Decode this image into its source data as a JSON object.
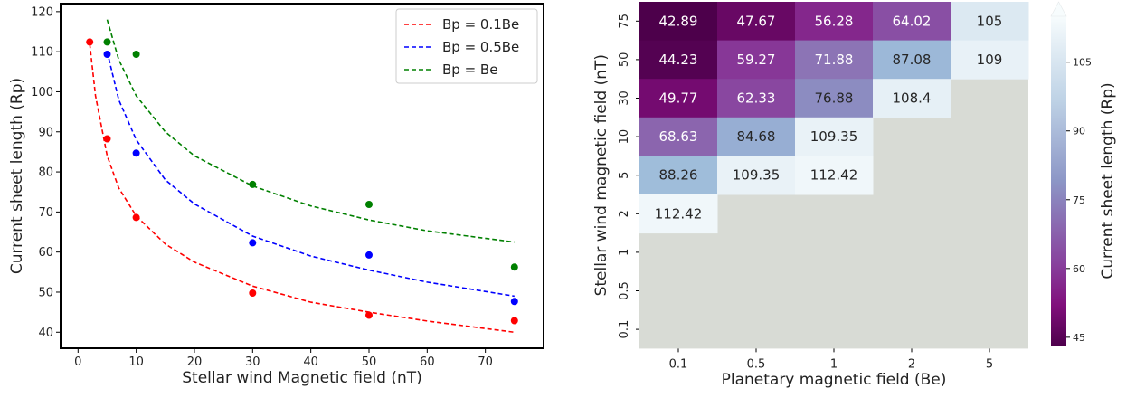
{
  "chart_data": [
    {
      "type": "scatter",
      "xlabel": "Stellar wind Magnetic field (nT)",
      "ylabel": "Current sheet length (Rp)",
      "xlim": [
        -3,
        80
      ],
      "ylim": [
        36,
        122
      ],
      "xticks": [
        0,
        10,
        20,
        30,
        40,
        50,
        60,
        70
      ],
      "yticks": [
        40,
        50,
        60,
        70,
        80,
        90,
        100,
        110,
        120
      ],
      "legend_position": "top-right",
      "series": [
        {
          "name": "Bp = 0.1Be",
          "color": "#ff0000",
          "points": [
            [
              2,
              112.42
            ],
            [
              5,
              88.26
            ],
            [
              10,
              68.63
            ],
            [
              30,
              49.77
            ],
            [
              50,
              44.23
            ],
            [
              75,
              42.89
            ]
          ],
          "fit": [
            [
              2,
              112
            ],
            [
              3,
              99
            ],
            [
              5,
              84
            ],
            [
              7,
              76
            ],
            [
              10,
              69
            ],
            [
              15,
              62
            ],
            [
              20,
              57.5
            ],
            [
              30,
              51.5
            ],
            [
              40,
              47.5
            ],
            [
              50,
              45
            ],
            [
              60,
              42.8
            ],
            [
              75,
              40
            ]
          ]
        },
        {
          "name": "Bp = 0.5Be",
          "color": "#0000ff",
          "points": [
            [
              5,
              109.35
            ],
            [
              10,
              84.68
            ],
            [
              30,
              62.33
            ],
            [
              50,
              59.27
            ],
            [
              75,
              47.67
            ]
          ],
          "fit": [
            [
              5,
              110
            ],
            [
              7,
              98
            ],
            [
              10,
              88
            ],
            [
              15,
              78
            ],
            [
              20,
              72
            ],
            [
              30,
              64
            ],
            [
              40,
              59
            ],
            [
              50,
              55.5
            ],
            [
              60,
              52.5
            ],
            [
              75,
              49
            ]
          ]
        },
        {
          "name": "Bp = Be",
          "color": "#008000",
          "points": [
            [
              5,
              112.42
            ],
            [
              10,
              109.35
            ],
            [
              30,
              76.88
            ],
            [
              50,
              71.88
            ],
            [
              75,
              56.28
            ]
          ],
          "fit": [
            [
              5,
              118
            ],
            [
              7,
              108
            ],
            [
              10,
              99
            ],
            [
              15,
              90
            ],
            [
              20,
              84
            ],
            [
              30,
              76.5
            ],
            [
              40,
              71.5
            ],
            [
              50,
              68
            ],
            [
              60,
              65.3
            ],
            [
              75,
              62.5
            ]
          ]
        }
      ]
    },
    {
      "type": "heatmap",
      "xlabel": "Planetary magnetic field (Be)",
      "ylabel": "Stellar wind magnetic field (nT)",
      "colorbar_label": "Current sheet length (Rp)",
      "columns": [
        "0.1",
        "0.5",
        "1",
        "2",
        "5"
      ],
      "rows": [
        "75",
        "50",
        "30",
        "10",
        "5",
        "2",
        "1",
        "0.5",
        "0.1"
      ],
      "values": [
        [
          42.89,
          47.67,
          56.28,
          64.02,
          105
        ],
        [
          44.23,
          59.27,
          71.88,
          87.08,
          109
        ],
        [
          49.77,
          62.33,
          76.88,
          108.4,
          null
        ],
        [
          68.63,
          84.68,
          109.35,
          null,
          null
        ],
        [
          88.26,
          109.35,
          112.42,
          null,
          null
        ],
        [
          112.42,
          null,
          null,
          null,
          null
        ],
        [
          null,
          null,
          null,
          null,
          null
        ],
        [
          null,
          null,
          null,
          null,
          null
        ],
        [
          null,
          null,
          null,
          null,
          null
        ]
      ],
      "labels": [
        [
          "42.89",
          "47.67",
          "56.28",
          "64.02",
          "105"
        ],
        [
          "44.23",
          "59.27",
          "71.88",
          "87.08",
          "109"
        ],
        [
          "49.77",
          "62.33",
          "76.88",
          "108.4",
          ""
        ],
        [
          "68.63",
          "84.68",
          "109.35",
          "",
          ""
        ],
        [
          "88.26",
          "109.35",
          "112.42",
          "",
          ""
        ],
        [
          "112.42",
          "",
          "",
          "",
          ""
        ],
        [
          "",
          "",
          "",
          "",
          ""
        ],
        [
          "",
          "",
          "",
          "",
          ""
        ],
        [
          "",
          "",
          "",
          "",
          ""
        ]
      ],
      "missing_color": "#d8dbd5",
      "colorbar_range": [
        43,
        115
      ],
      "colorbar_ticks": [
        "45",
        "60",
        "75",
        "90",
        "105"
      ],
      "colormap": "BuPu_r"
    }
  ]
}
